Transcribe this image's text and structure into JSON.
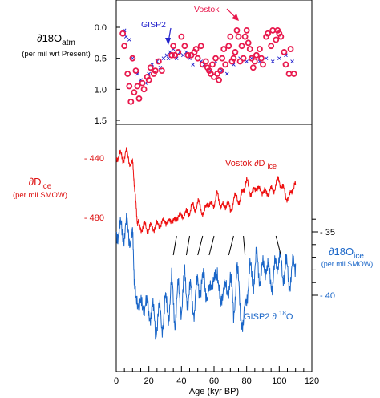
{
  "chart_data": [
    {
      "type": "scatter",
      "panel": "d18O_atm",
      "ylabel_main": "∂18O",
      "ylabel_sub": "atm",
      "ylabel_units": "(per mil wrt Present)",
      "ylim": [
        1.5,
        -0.45
      ],
      "yticks": [
        "0.0",
        "0.5",
        "1.0",
        "1.5"
      ],
      "ytick_values": [
        0.0,
        0.5,
        1.0,
        1.5
      ],
      "series": [
        {
          "name": "Vostok",
          "marker": "circle",
          "color": "#e8194d",
          "x": [
            4,
            5,
            7,
            8,
            9,
            10,
            11,
            12,
            13,
            14,
            16,
            17,
            19,
            20,
            21,
            23,
            24,
            26,
            28,
            34,
            35,
            36,
            38,
            40,
            42,
            44,
            46,
            48,
            49,
            50,
            52,
            53,
            55,
            56,
            57,
            58,
            59,
            60,
            61,
            62,
            63,
            64,
            65,
            66,
            67,
            69,
            70,
            71,
            72,
            73,
            74,
            75,
            76,
            77,
            78,
            79,
            80,
            81,
            82,
            83,
            84,
            85,
            86,
            88,
            89,
            90,
            92,
            93,
            95,
            96,
            98,
            99,
            100,
            101,
            103,
            104,
            106,
            107,
            109
          ],
          "y": [
            0.1,
            0.3,
            0.75,
            0.95,
            1.2,
            0.5,
            1.05,
            0.7,
            0.95,
            1.15,
            0.9,
            1.0,
            0.8,
            0.85,
            0.65,
            0.75,
            0.7,
            0.55,
            0.7,
            0.45,
            0.3,
            0.45,
            0.4,
            0.15,
            0.3,
            0.45,
            0.45,
            0.4,
            0.35,
            0.5,
            0.3,
            0.6,
            0.55,
            0.65,
            0.7,
            0.75,
            0.6,
            0.8,
            0.5,
            0.75,
            0.85,
            0.7,
            0.5,
            0.35,
            0.6,
            0.3,
            0.15,
            0.55,
            0.5,
            0.4,
            0.05,
            0.15,
            0.55,
            0.3,
            0.5,
            0.15,
            0.05,
            0.25,
            0.35,
            0.5,
            0.65,
            0.55,
            0.45,
            0.35,
            0.5,
            0.6,
            0.15,
            0.1,
            0.3,
            0.05,
            0.2,
            0.05,
            0.1,
            0.15,
            0.4,
            0.6,
            0.75,
            0.35,
            0.75
          ]
        },
        {
          "name": "GISP2",
          "marker": "cross",
          "color": "#2222cc",
          "x": [
            5,
            6,
            8,
            10,
            13,
            15,
            18,
            20,
            22,
            25,
            27,
            29,
            31,
            32,
            33,
            35,
            37,
            39,
            41,
            43,
            45,
            47,
            52,
            54,
            58,
            61,
            65,
            68,
            72,
            76,
            80,
            83,
            88,
            92,
            96,
            100,
            104,
            108
          ],
          "y": [
            0.05,
            0.15,
            0.2,
            0.5,
            0.75,
            0.85,
            0.9,
            0.75,
            0.6,
            0.55,
            0.65,
            0.5,
            0.45,
            0.5,
            0.4,
            0.35,
            0.5,
            0.4,
            0.45,
            0.4,
            0.5,
            0.6,
            0.55,
            0.6,
            0.7,
            0.55,
            0.7,
            0.75,
            0.6,
            0.5,
            0.55,
            0.5,
            0.55,
            0.5,
            0.55,
            0.5,
            0.45,
            0.55
          ]
        }
      ],
      "annotations": [
        {
          "text": "GISP2",
          "color": "#2222cc"
        },
        {
          "text": "Vostok",
          "color": "#e8194d"
        }
      ]
    },
    {
      "type": "line",
      "panel": "ice isotopes",
      "xlabel": "Age (kyr BP)",
      "xlim": [
        0,
        120
      ],
      "xticks": [
        "0",
        "20",
        "40",
        "60",
        "80",
        "100",
        "120"
      ],
      "xtick_values": [
        0,
        20,
        40,
        60,
        80,
        100,
        120
      ],
      "left_axis": {
        "ylabel_main": "∂D",
        "ylabel_sub": "ice",
        "ylabel_units": "(per mil SMOW)",
        "ticks": [
          "- 440",
          "- 480"
        ],
        "tick_values": [
          -440,
          -480
        ],
        "color": "#dd1111"
      },
      "right_axis": {
        "ylabel_main": "∂18O",
        "ylabel_sub": "ice",
        "ylabel_units": "(per mil SMOW)",
        "ticks": [
          "- 35",
          "- 40"
        ],
        "tick_values": [
          -35,
          -40
        ],
        "color": "#1a66c8"
      },
      "series": [
        {
          "name": "Vostok ∂D ice",
          "label_main": "Vostok ∂D",
          "label_sub": "ice",
          "color": "#ee1111",
          "axis": "left",
          "x": [
            0,
            2,
            4,
            6,
            8,
            10,
            11,
            12,
            13,
            14,
            16,
            18,
            20,
            22,
            24,
            26,
            28,
            30,
            32,
            34,
            36,
            38,
            40,
            42,
            44,
            46,
            48,
            50,
            52,
            54,
            56,
            58,
            60,
            62,
            64,
            66,
            68,
            70,
            72,
            74,
            76,
            78,
            80,
            82,
            84,
            86,
            88,
            90,
            92,
            94,
            96,
            98,
            100,
            102,
            104,
            106,
            108,
            110
          ],
          "y": [
            -440,
            -437,
            -441,
            -436,
            -442,
            -444,
            -455,
            -472,
            -482,
            -486,
            -487,
            -486,
            -488,
            -486,
            -487,
            -484,
            -485,
            -481,
            -485,
            -480,
            -484,
            -477,
            -481,
            -476,
            -479,
            -472,
            -475,
            -470,
            -474,
            -478,
            -469,
            -473,
            -470,
            -465,
            -471,
            -474,
            -469,
            -476,
            -468,
            -466,
            -470,
            -460,
            -456,
            -462,
            -464,
            -458,
            -463,
            -461,
            -465,
            -461,
            -463,
            -457,
            -455,
            -460,
            -465,
            -468,
            -460,
            -458
          ]
        },
        {
          "name": "GISP2 ∂18O",
          "label": "GISP2 ∂",
          "label_sup": "18",
          "label_tail": "O",
          "color": "#1a66c8",
          "axis": "right",
          "x": [
            0,
            2,
            4,
            6,
            8,
            10,
            11,
            12,
            14,
            16,
            18,
            20,
            22,
            24,
            26,
            28,
            30,
            32,
            34,
            36,
            38,
            40,
            42,
            44,
            46,
            48,
            50,
            52,
            54,
            56,
            58,
            60,
            62,
            64,
            66,
            68,
            70,
            72,
            74,
            76,
            78,
            80,
            82,
            84,
            86,
            88,
            90,
            92,
            94,
            96,
            98,
            100,
            102,
            104,
            106,
            108,
            110
          ],
          "y": [
            -35,
            -34.7,
            -35.2,
            -34.6,
            -35.3,
            -35.5,
            -38,
            -41,
            -40,
            -41.5,
            -40,
            -42,
            -40.5,
            -43,
            -41,
            -42.5,
            -40.5,
            -41.5,
            -39,
            -42,
            -39.5,
            -41,
            -38.5,
            -40.5,
            -39.5,
            -41.5,
            -38.5,
            -40,
            -38,
            -41,
            -38.5,
            -39.5,
            -37.5,
            -41.5,
            -38.5,
            -40.5,
            -38,
            -42,
            -37.5,
            -41,
            -42.5,
            -40,
            -38,
            -39,
            -37,
            -38.5,
            -38,
            -37.5,
            -38.5,
            -39,
            -37.5,
            -37,
            -38.5,
            -37.5,
            -39,
            -38,
            -37.5
          ]
        }
      ]
    }
  ]
}
